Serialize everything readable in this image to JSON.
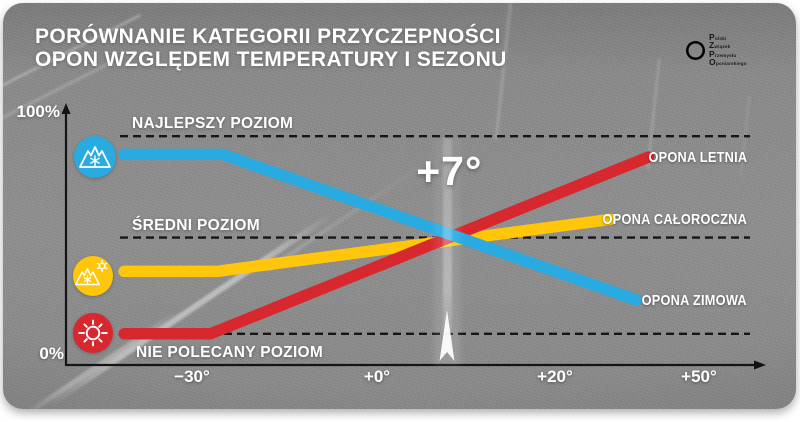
{
  "title": {
    "line1": "PORÓWNANIE KATEGORII PRZYCZEPNOŚCI",
    "line2": "OPON WZGLĘDEM TEMPERATURY I SEZONU"
  },
  "logo": {
    "org_name_lines": [
      "Polski",
      "Związek",
      "Przemysłu",
      "Oponiarskiego"
    ],
    "circles": [
      {
        "name": "white-circle",
        "color": "#ffffff"
      },
      {
        "name": "green-circle",
        "color": "#5fa02a"
      },
      {
        "name": "blue-circle",
        "color": "#4fa8d5"
      },
      {
        "name": "black-circle",
        "color": "#141414"
      }
    ]
  },
  "chart_data": {
    "type": "line",
    "title": "PORÓWNANIE KATEGORII PRZYCZEPNOŚCI OPON WZGLĘDEM TEMPERATURY I SEZONU",
    "x_axis": {
      "ticks": [
        "−30°",
        "+0°",
        "+20°",
        "+50°"
      ],
      "tick_values": [
        -30,
        0,
        20,
        50
      ],
      "unit": "temperatura"
    },
    "y_axis": {
      "min_label": "0%",
      "max_label": "100%",
      "ylim": [
        0,
        100
      ],
      "unit": "przyczepność"
    },
    "levels": [
      {
        "label": "NAJLEPSZY POZIOM",
        "grip_pct": 88
      },
      {
        "label": "ŚREDNI POZIOM",
        "grip_pct": 49
      },
      {
        "label": "NIE POLECANY POZIOM",
        "grip_pct": 12
      }
    ],
    "annotation": {
      "text": "+7°",
      "temp": 7
    },
    "legend_position": "right",
    "series": [
      {
        "name": "OPONA LETNIA",
        "color": "#D7282F",
        "icon": "sun-icon",
        "points": [
          {
            "temp": -41,
            "grip": 12
          },
          {
            "temp": -27,
            "grip": 12
          },
          {
            "temp": 39.5,
            "grip": 80
          }
        ]
      },
      {
        "name": "OPONA CAŁOROCZNA",
        "color": "#FFC60B",
        "icon": "all-season-mountain-snowflake-sun-icon",
        "points": [
          {
            "temp": -41,
            "grip": 36
          },
          {
            "temp": -26,
            "grip": 36
          },
          {
            "temp": 31.5,
            "grip": 56
          }
        ]
      },
      {
        "name": "OPONA ZIMOWA",
        "color": "#29ABE2",
        "icon": "mountain-snowflake-icon",
        "points": [
          {
            "temp": -41,
            "grip": 81
          },
          {
            "temp": -25,
            "grip": 81
          },
          {
            "temp": 37,
            "grip": 25
          }
        ]
      }
    ]
  }
}
